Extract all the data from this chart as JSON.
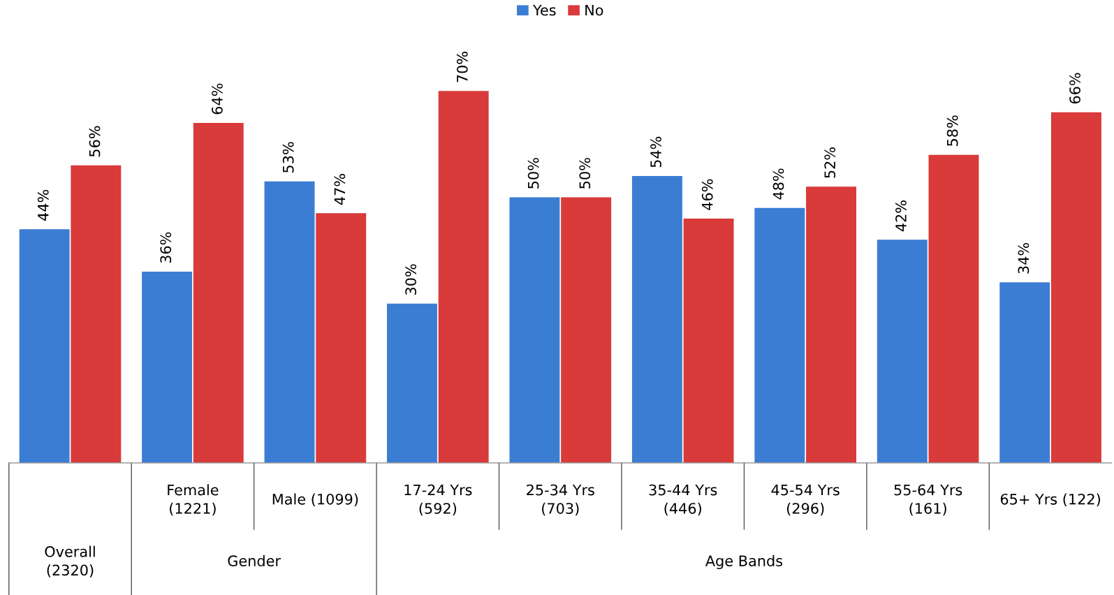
{
  "chart_data": {
    "type": "bar",
    "categories": [
      null,
      "Female\n(1221)",
      "Male (1099)",
      "17-24 Yrs\n(592)",
      "25-34 Yrs\n(703)",
      "35-44 Yrs\n(446)",
      "45-54 Yrs\n(296)",
      "55-64 Yrs\n(161)",
      "65+ Yrs (122)"
    ],
    "series": [
      {
        "name": "Yes",
        "color": "#3b7dd3",
        "values": [
          44,
          36,
          53,
          30,
          50,
          54,
          48,
          42,
          34
        ],
        "value_labels": [
          "44%",
          "36%",
          "53%",
          "30%",
          "50%",
          "54%",
          "48%",
          "42%",
          "34%"
        ]
      },
      {
        "name": "No",
        "color": "#d93a3a",
        "values": [
          56,
          64,
          47,
          70,
          50,
          46,
          52,
          58,
          66
        ],
        "value_labels": [
          "56%",
          "64%",
          "47%",
          "70%",
          "50%",
          "46%",
          "52%",
          "58%",
          "66%"
        ]
      }
    ],
    "annotations": [
      "Overall\n(2320)",
      "Gender",
      "Age Bands"
    ],
    "legend": "top"
  }
}
